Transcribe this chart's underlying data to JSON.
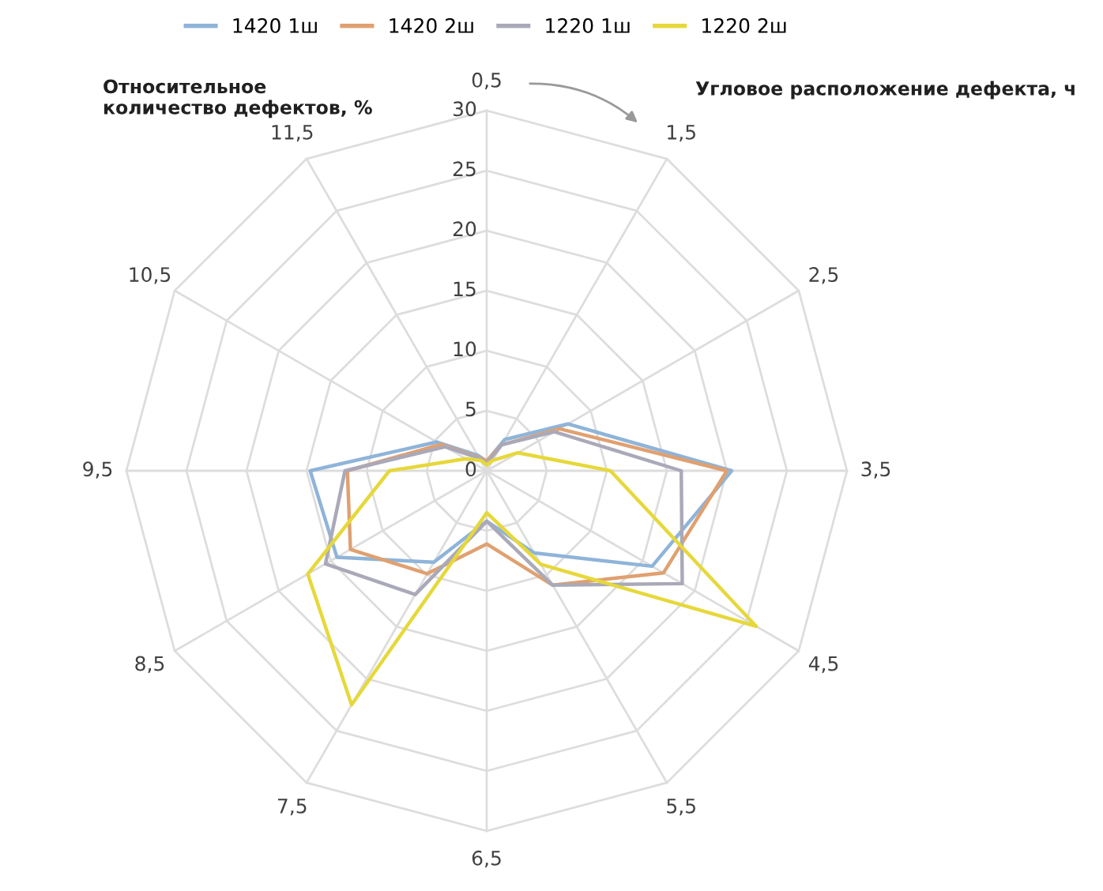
{
  "chart_data": {
    "type": "radar",
    "categories": [
      "0,5",
      "1,5",
      "2,5",
      "3,5",
      "4,5",
      "5,5",
      "6,5",
      "7,5",
      "8,5",
      "9,5",
      "10,5",
      "11,5"
    ],
    "series": [
      {
        "name": "1420 1ш",
        "color": "#8fb4d9",
        "values": [
          0.8,
          3,
          7.8,
          20.4,
          15.9,
          7.9,
          4.2,
          8.8,
          14.4,
          14.7,
          4.8,
          1.5
        ]
      },
      {
        "name": "1420 2ш",
        "color": "#e0a070",
        "values": [
          0.8,
          2.5,
          7,
          20,
          17,
          11,
          6.1,
          9.9,
          13.1,
          11.6,
          4.4,
          1.3
        ]
      },
      {
        "name": "1220 1ш",
        "color": "#a9a9b9",
        "values": [
          0.6,
          2.5,
          6.5,
          16.2,
          18.8,
          11,
          4.2,
          11.9,
          15.5,
          11.8,
          4,
          1.2
        ]
      },
      {
        "name": "1220 2ш",
        "color": "#e6d83a",
        "values": [
          0.5,
          1,
          3,
          10.3,
          25.9,
          9,
          3.5,
          22.5,
          17.2,
          8.1,
          2,
          1
        ]
      }
    ],
    "ylim": [
      0,
      30
    ],
    "yticks": [
      0,
      5,
      10,
      15,
      20,
      25,
      30
    ],
    "grid": true,
    "legend": "top",
    "ylabel": "Относительное\nколичество дефектов, %",
    "annotations": [
      "Угловое расположение дефекта, ч"
    ]
  }
}
